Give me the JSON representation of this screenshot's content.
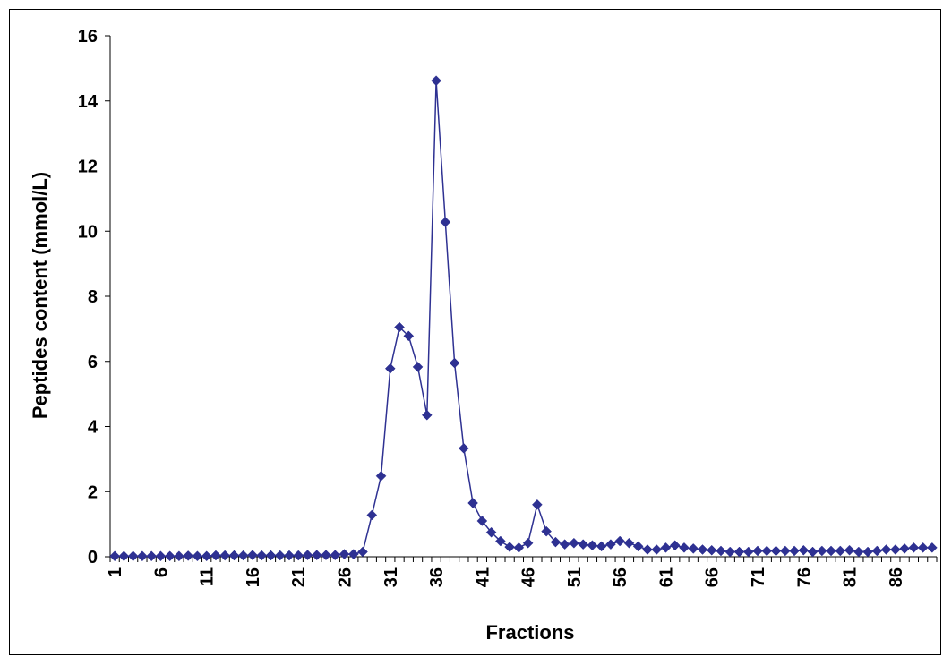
{
  "chart_data": {
    "type": "line",
    "title": "",
    "xlabel": "Fractions",
    "ylabel": "Peptides content (mmol/L)",
    "ylim": [
      0,
      16
    ],
    "yticks": [
      0,
      2,
      4,
      6,
      8,
      10,
      12,
      14,
      16
    ],
    "xticks": [
      1,
      6,
      11,
      16,
      21,
      26,
      31,
      36,
      41,
      46,
      51,
      56,
      61,
      66,
      71,
      76,
      81,
      86
    ],
    "grid": false,
    "legend": "none",
    "marker": "diamond",
    "color": "#2E3192",
    "x": [
      1,
      2,
      3,
      4,
      5,
      6,
      7,
      8,
      9,
      10,
      11,
      12,
      13,
      14,
      15,
      16,
      17,
      18,
      19,
      20,
      21,
      22,
      23,
      24,
      25,
      26,
      27,
      28,
      29,
      30,
      31,
      32,
      33,
      34,
      35,
      36,
      37,
      38,
      39,
      40,
      41,
      42,
      43,
      44,
      45,
      46,
      47,
      48,
      49,
      50,
      51,
      52,
      53,
      54,
      55,
      56,
      57,
      58,
      59,
      60,
      61,
      62,
      63,
      64,
      65,
      66,
      67,
      68,
      69,
      70,
      71,
      72,
      73,
      74,
      75,
      76,
      77,
      78,
      79,
      80,
      81,
      82,
      83,
      84,
      85,
      86,
      87,
      88,
      89,
      90
    ],
    "series": [
      {
        "values": [
          0.02,
          0.02,
          0.02,
          0.02,
          0.02,
          0.02,
          0.02,
          0.02,
          0.03,
          0.02,
          0.02,
          0.04,
          0.04,
          0.04,
          0.04,
          0.05,
          0.04,
          0.04,
          0.04,
          0.04,
          0.04,
          0.05,
          0.05,
          0.05,
          0.05,
          0.08,
          0.08,
          0.15,
          1.28,
          2.48,
          5.78,
          7.05,
          6.78,
          5.83,
          4.35,
          14.62,
          10.28,
          5.95,
          3.33,
          1.65,
          1.1,
          0.75,
          0.48,
          0.3,
          0.28,
          0.42,
          1.6,
          0.78,
          0.45,
          0.38,
          0.42,
          0.38,
          0.35,
          0.32,
          0.38,
          0.48,
          0.42,
          0.32,
          0.22,
          0.22,
          0.28,
          0.35,
          0.28,
          0.25,
          0.22,
          0.2,
          0.18,
          0.15,
          0.15,
          0.15,
          0.18,
          0.18,
          0.18,
          0.18,
          0.18,
          0.2,
          0.15,
          0.18,
          0.18,
          0.18,
          0.2,
          0.15,
          0.15,
          0.18,
          0.22,
          0.22,
          0.25,
          0.28,
          0.28,
          0.28
        ]
      }
    ]
  }
}
